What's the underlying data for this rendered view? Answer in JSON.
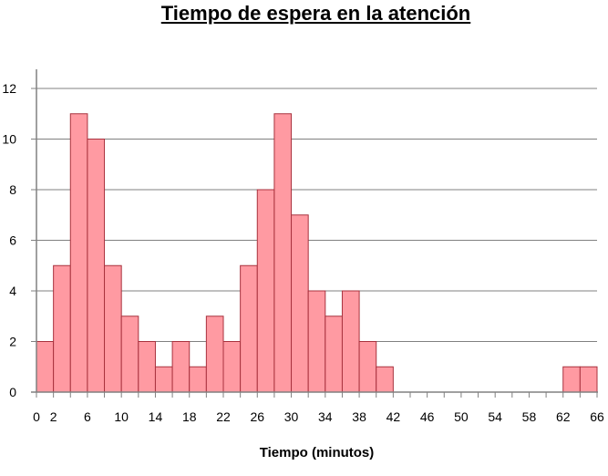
{
  "chart_data": {
    "type": "bar",
    "title": "Tiempo de espera en la atención",
    "xlabel": "Tiempo (minutos)",
    "ylabel": "",
    "bin_width": 2,
    "x_range": [
      0,
      66
    ],
    "ylim": [
      0,
      12
    ],
    "y_ticks": [
      "0",
      "2",
      "4",
      "6",
      "8",
      "10",
      "12"
    ],
    "x_ticks": [
      "0",
      "2",
      "6",
      "10",
      "14",
      "18",
      "22",
      "26",
      "30",
      "34",
      "38",
      "42",
      "46",
      "50",
      "54",
      "58",
      "62",
      "66"
    ],
    "bins": [
      {
        "start": 0,
        "end": 2,
        "value": 2
      },
      {
        "start": 2,
        "end": 4,
        "value": 5
      },
      {
        "start": 4,
        "end": 6,
        "value": 11
      },
      {
        "start": 6,
        "end": 8,
        "value": 10
      },
      {
        "start": 8,
        "end": 10,
        "value": 5
      },
      {
        "start": 10,
        "end": 12,
        "value": 3
      },
      {
        "start": 12,
        "end": 14,
        "value": 2
      },
      {
        "start": 14,
        "end": 16,
        "value": 1
      },
      {
        "start": 16,
        "end": 18,
        "value": 2
      },
      {
        "start": 18,
        "end": 20,
        "value": 1
      },
      {
        "start": 20,
        "end": 22,
        "value": 3
      },
      {
        "start": 22,
        "end": 24,
        "value": 2
      },
      {
        "start": 24,
        "end": 26,
        "value": 5
      },
      {
        "start": 26,
        "end": 28,
        "value": 8
      },
      {
        "start": 28,
        "end": 30,
        "value": 11
      },
      {
        "start": 30,
        "end": 32,
        "value": 7
      },
      {
        "start": 32,
        "end": 34,
        "value": 4
      },
      {
        "start": 34,
        "end": 36,
        "value": 3
      },
      {
        "start": 36,
        "end": 38,
        "value": 4
      },
      {
        "start": 38,
        "end": 40,
        "value": 2
      },
      {
        "start": 40,
        "end": 42,
        "value": 1
      },
      {
        "start": 62,
        "end": 64,
        "value": 1
      },
      {
        "start": 64,
        "end": 66,
        "value": 1
      }
    ],
    "grid": true,
    "colors": {
      "bar_fill": "#ff9aa2",
      "bar_stroke": "#a8323e",
      "grid": "#808080",
      "axis": "#808080"
    }
  }
}
